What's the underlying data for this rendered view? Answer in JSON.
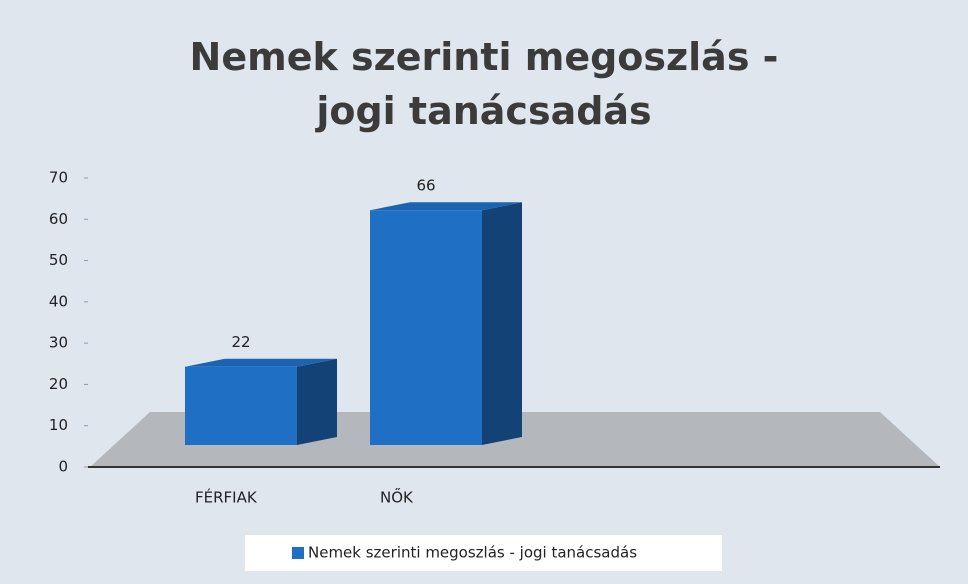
{
  "chart_data": {
    "type": "bar",
    "title": "Nemek szerinti megoszlás - jogi tanácsadás",
    "categories": [
      "FÉRFIAK",
      "NŐK"
    ],
    "series": [
      {
        "name": "Nemek szerinti megoszlás - jogi tanácsadás",
        "color": "#1f6fc5",
        "values": [
          22,
          66
        ]
      }
    ],
    "ylim": [
      0,
      70
    ],
    "yticks": [
      0,
      10,
      20,
      30,
      40,
      50,
      60,
      70
    ],
    "grid": false,
    "legend": "bottom"
  }
}
